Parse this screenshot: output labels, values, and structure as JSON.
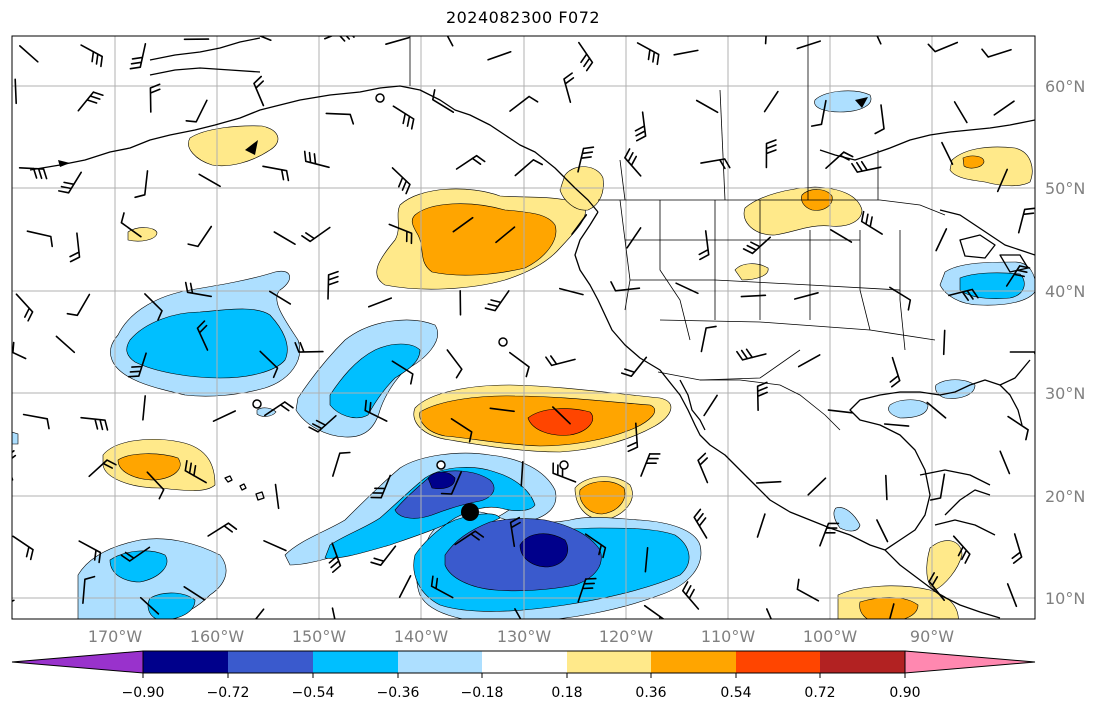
{
  "title": "2024082300 F072",
  "lat_labels": [
    "60°N",
    "50°N",
    "40°N",
    "30°N",
    "20°N",
    "10°N"
  ],
  "lon_labels": [
    "170°W",
    "160°W",
    "150°W",
    "140°W",
    "130°W",
    "120°W",
    "110°W",
    "100°W",
    "90°W"
  ],
  "colorbar": {
    "tick_labels": [
      "−0.90",
      "−0.72",
      "−0.54",
      "−0.36",
      "−0.18",
      "0.18",
      "0.36",
      "0.54",
      "0.72",
      "0.90"
    ],
    "colors": [
      "#9932CC",
      "#00008B",
      "#3A5ACD",
      "#00BFFF",
      "#ADDFFF",
      "#FFFFFF",
      "#FFE98A",
      "#FFA500",
      "#FF4500",
      "#B22222",
      "#FF88B0"
    ]
  },
  "colors": {
    "coast": "#000000",
    "grid": "#b0b0b0",
    "neg1": "#ADDFFF",
    "neg2": "#00BFFF",
    "neg3": "#3A5ACD",
    "neg4": "#00008B",
    "pos1": "#FFE98A",
    "pos2": "#FFA500",
    "pos3": "#FF4500"
  }
}
